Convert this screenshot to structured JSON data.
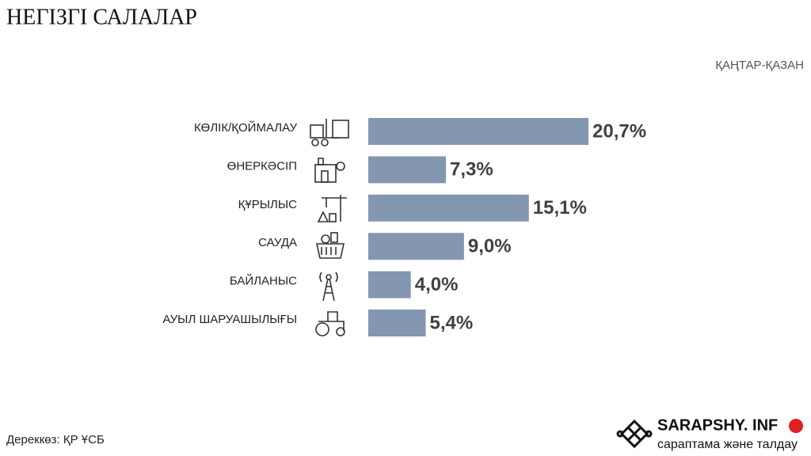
{
  "chart_data": {
    "type": "bar",
    "orientation": "horizontal",
    "title": "НЕГІЗГІ САЛАЛАР",
    "subtitle": "ҚАҢТАР-ҚАЗАН",
    "categories": [
      "КӨЛІК/ҚОЙМАЛАУ",
      "ӨНЕРКӘСІП",
      "ҚҰРЫЛЫС",
      "САУДА",
      "БАЙЛАНЫС",
      "АУЫЛ ШАРУАШЫЛЫҒЫ"
    ],
    "values": [
      20.7,
      7.3,
      15.1,
      9.0,
      4.0,
      5.4
    ],
    "value_labels": [
      "20,7%",
      "7,3%",
      "15,1%",
      "9,0%",
      "4,0%",
      "5,4%"
    ],
    "color": "#8497b0"
  },
  "source": "Дереккөз: ҚР ҰСБ",
  "brand": {
    "name": "SARAPSHY. INF",
    "tagline": "сараптама және талдау"
  }
}
